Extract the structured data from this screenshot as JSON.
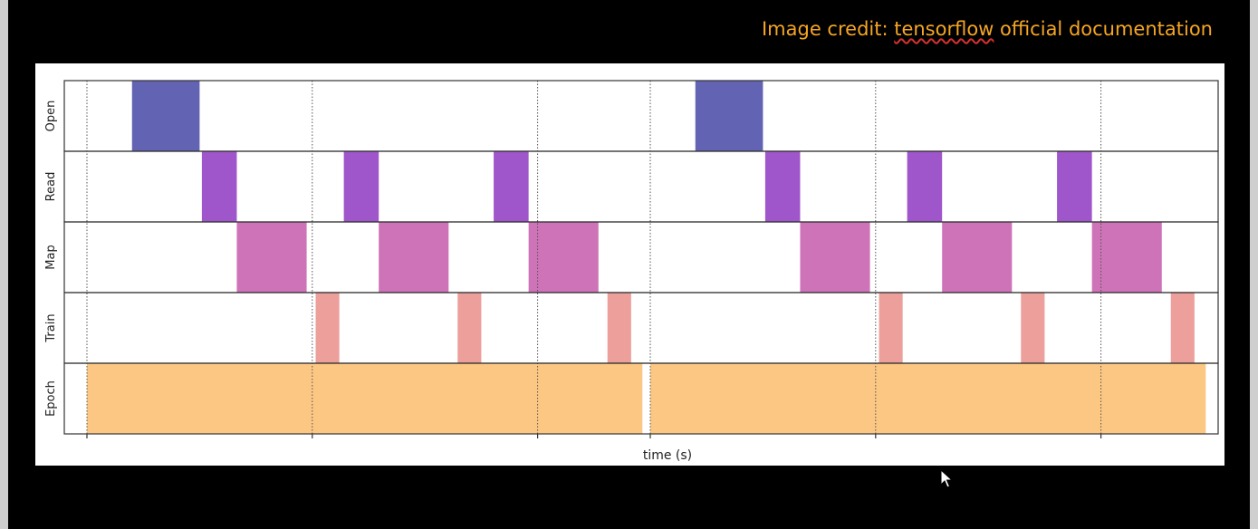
{
  "credit": {
    "prefix": "Image credit: ",
    "link": "tensorflow",
    "suffix": " official documentation"
  },
  "colors": {
    "background": "#000000",
    "credit": "#f5a623",
    "open": "#5b5bb0",
    "read": "#9b4dc8",
    "map": "#cc6bb4",
    "train": "#ec9a96",
    "epoch": "#fcc47c"
  },
  "chart_data": {
    "type": "timeline",
    "xlabel": "time (s)",
    "ylabel": "",
    "grid": true,
    "x_tick_labels": [],
    "rows": [
      "Open",
      "Read",
      "Map",
      "Train",
      "Epoch"
    ],
    "xlim": [
      0,
      10
    ],
    "gridlines_x": [
      0,
      2,
      4,
      5,
      7,
      9
    ],
    "intervals": {
      "Open": [
        [
          0.4,
          1.0
        ],
        [
          5.4,
          6.0
        ]
      ],
      "Read": [
        [
          1.02,
          1.33
        ],
        [
          2.28,
          2.59
        ],
        [
          3.61,
          3.92
        ],
        [
          6.02,
          6.33
        ],
        [
          7.28,
          7.59
        ],
        [
          8.61,
          8.92
        ]
      ],
      "Map": [
        [
          1.33,
          1.95
        ],
        [
          2.59,
          3.21
        ],
        [
          3.92,
          4.54
        ],
        [
          6.33,
          6.95
        ],
        [
          7.59,
          8.21
        ],
        [
          8.92,
          9.54
        ]
      ],
      "Train": [
        [
          2.03,
          2.24
        ],
        [
          3.29,
          3.5
        ],
        [
          4.62,
          4.83
        ],
        [
          7.03,
          7.24
        ],
        [
          8.29,
          8.5
        ],
        [
          9.62,
          9.83
        ]
      ],
      "Epoch": [
        [
          0,
          4.93
        ],
        [
          5.0,
          9.93
        ]
      ]
    }
  }
}
